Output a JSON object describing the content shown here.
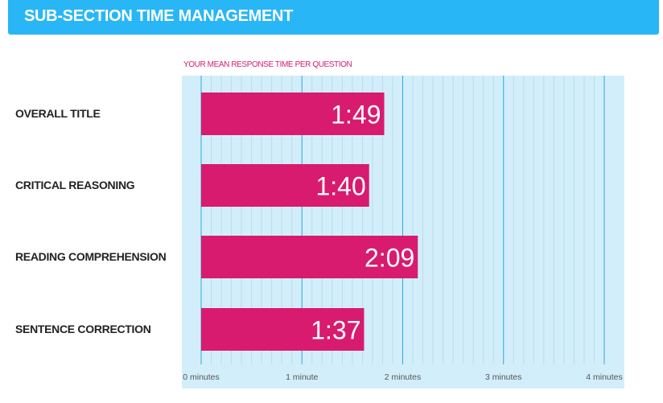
{
  "header": {
    "title": "SUB-SECTION TIME MANAGEMENT"
  },
  "colors": {
    "header_bg": "#29b6f6",
    "bar": "#d81b6e",
    "plot_bg": "#d3eefb",
    "major_grid": "#2aa9dd",
    "minor_grid": "#b9dcec"
  },
  "chart_data": {
    "type": "bar",
    "orientation": "horizontal",
    "title": "YOUR MEAN RESPONSE TIME PER QUESTION",
    "categories": [
      "OVERALL TITLE",
      "CRITICAL REASONING",
      "READING COMPREHENSION",
      "SENTENCE CORRECTION"
    ],
    "values_seconds": [
      109,
      100,
      129,
      97
    ],
    "data_labels": [
      "1:49",
      "1:40",
      "2:09",
      "1:37"
    ],
    "x_ticks": [
      "0 minutes",
      "1 minute",
      "2 minutes",
      "3 minutes",
      "4 minutes"
    ],
    "xlim_seconds": [
      0,
      240
    ],
    "grid": true,
    "legend": "none"
  }
}
